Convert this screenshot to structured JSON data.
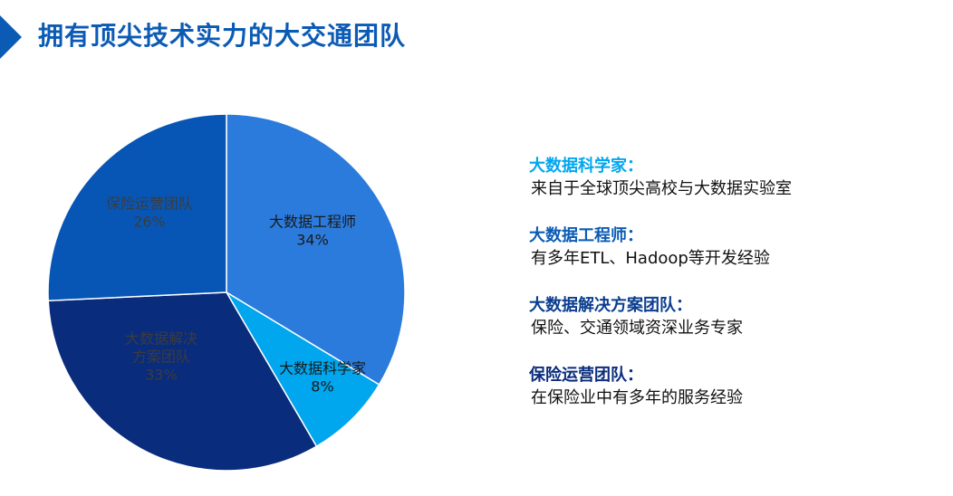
{
  "slide": {
    "title": "拥有顶尖技术实力的大交通团队"
  },
  "colors": {
    "accent": "#0b5bb5"
  },
  "chart_data": {
    "type": "pie",
    "slices": [
      {
        "label_lines": [
          "大数据工程师"
        ],
        "percent_label": "34%",
        "value": 34,
        "color": "#2b7bdc",
        "label_color": "#1a1a1a"
      },
      {
        "label_lines": [
          "大数据科学家"
        ],
        "percent_label": "8%",
        "value": 8,
        "color": "#00a6ee",
        "label_color": "#1a1a1a"
      },
      {
        "label_lines": [
          "大数据解决",
          "方案团队"
        ],
        "percent_label": "33%",
        "value": 33,
        "color": "#0a2c7d",
        "label_color": "#3c3c3c"
      },
      {
        "label_lines": [
          "保险运营团队"
        ],
        "percent_label": "26%",
        "value": 26,
        "color": "#0756b6",
        "label_color": "#3c3c3c"
      }
    ]
  },
  "legend": {
    "items": [
      {
        "title": "大数据科学家：",
        "desc": "来自于全球顶尖高校与大数据实验室",
        "color": "#00a6ee"
      },
      {
        "title": "大数据工程师：",
        "desc": "有多年ETL、Hadoop等开发经验",
        "color": "#0b5bb5"
      },
      {
        "title": "大数据解决方案团队：",
        "desc": "保险、交通领域资深业务专家",
        "color": "#0a3d8f"
      },
      {
        "title": "保险运营团队：",
        "desc": "在保险业中有多年的服务经验",
        "color": "#0a2c7d"
      }
    ]
  }
}
